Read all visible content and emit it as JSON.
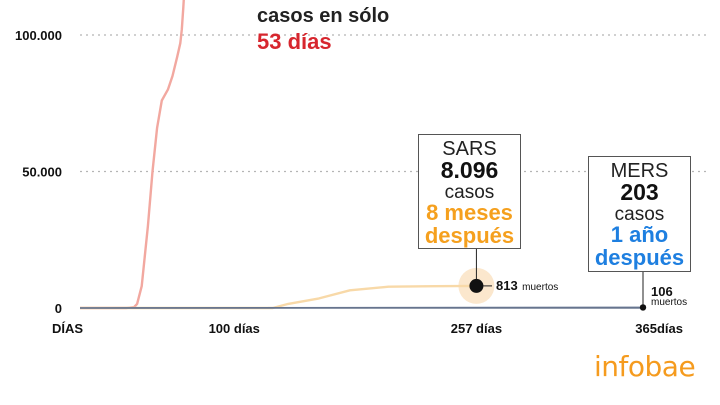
{
  "chart_data": {
    "type": "line",
    "x_unit": "días",
    "xlim": [
      0,
      365
    ],
    "ylim": [
      0,
      120000
    ],
    "y_ticks": [
      {
        "value": 100000,
        "label": "100.000"
      },
      {
        "value": 50000,
        "label": "50.000"
      },
      {
        "value": 0,
        "label": "0"
      }
    ],
    "x_ticks": [
      {
        "value": 0,
        "label": "DÍAS"
      },
      {
        "value": 100,
        "label": "100 días"
      },
      {
        "value": 257,
        "label": "257 días"
      },
      {
        "value": 365,
        "label": "365días"
      }
    ],
    "grid": true,
    "series": [
      {
        "color": "#f2a8a0",
        "points": [
          [
            0,
            0
          ],
          [
            20,
            0
          ],
          [
            30,
            0
          ],
          [
            35,
            300
          ],
          [
            37,
            1500
          ],
          [
            40,
            8000
          ],
          [
            44,
            30000
          ],
          [
            47,
            50000
          ],
          [
            50,
            66000
          ],
          [
            53,
            76000
          ],
          [
            57,
            80000
          ],
          [
            60,
            85000
          ],
          [
            63,
            92000
          ],
          [
            65,
            97000
          ],
          [
            66,
            102000
          ],
          [
            67,
            110000
          ],
          [
            68,
            120000
          ]
        ]
      },
      {
        "color": "#f8d9a8",
        "points": [
          [
            0,
            0
          ],
          [
            105,
            0
          ],
          [
            125,
            0
          ],
          [
            135,
            1500
          ],
          [
            155,
            3500
          ],
          [
            175,
            6500
          ],
          [
            200,
            7800
          ],
          [
            230,
            8000
          ],
          [
            257,
            8096
          ]
        ]
      },
      {
        "color": "#5a6b8a",
        "points": [
          [
            0,
            0
          ],
          [
            365,
            203
          ]
        ]
      }
    ],
    "annotations": {
      "covid": {
        "title": "casos en sólo",
        "days": "53 días"
      },
      "sars": {
        "name": "SARS",
        "count": "8.096",
        "unit": "casos",
        "when1": "8 meses",
        "when2": "después",
        "color": "#f5a01e",
        "x": 257,
        "y": 8096,
        "deaths": "813",
        "deaths_label": "muertos"
      },
      "mers": {
        "name": "MERS",
        "count": "203",
        "unit": "casos",
        "when1": "1 año",
        "when2": "después",
        "color": "#1e7fe0",
        "x": 365,
        "y": 203,
        "deaths": "106",
        "deaths_label": "muertos"
      }
    }
  },
  "brand": {
    "logo": "infobae",
    "color": "#f59b1e"
  }
}
